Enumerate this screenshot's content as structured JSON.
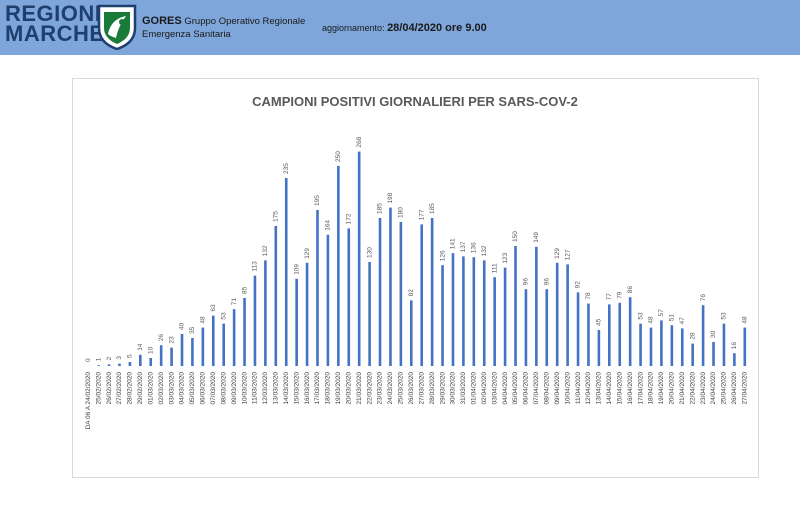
{
  "header": {
    "logo_line1": "REGIONE",
    "logo_line2": "MARCHE",
    "org_name": "GORES",
    "org_desc_line1": "Gruppo Operativo Regionale",
    "org_desc_line2": "Emergenza Sanitaria",
    "update_label": "aggiornamento:",
    "update_value": "28/04/2020 ore 9.00"
  },
  "colors": {
    "header_bg": "#7ea6da",
    "bar": "#4472c4",
    "logo": "#1f3f6f"
  },
  "chart_data": {
    "type": "bar",
    "title": "CAMPIONI POSITIVI GIORNALIERI PER SARS-COV-2",
    "xlabel": "",
    "ylabel": "",
    "ylim": [
      0,
      280
    ],
    "grid": false,
    "categories": [
      "DA 06 A 24/02/2020",
      "25/02/2020",
      "26/02/2020",
      "27/02/2020",
      "28/02/2020",
      "29/02/2020",
      "01/03/2020",
      "02/03/2020",
      "03/03/2020",
      "04/03/2020",
      "05/03/2020",
      "06/03/2020",
      "07/03/2020",
      "08/03/2020",
      "09/03/2020",
      "10/03/2020",
      "11/03/2020",
      "12/03/2020",
      "13/03/2020",
      "14/03/2020",
      "15/03/2020",
      "16/03/2020",
      "17/03/2020",
      "18/03/2020",
      "19/03/2020",
      "20/03/2020",
      "21/03/2020",
      "22/03/2020",
      "23/03/2020",
      "24/03/2020",
      "25/03/2020",
      "26/03/2020",
      "27/03/2020",
      "28/03/2020",
      "29/03/2020",
      "30/03/2020",
      "31/03/2020",
      "01/04/2020",
      "02/04/2020",
      "03/04/2020",
      "04/04/2020",
      "05/04/2020",
      "06/04/2020",
      "07/04/2020",
      "08/04/2020",
      "09/04/2020",
      "10/04/2020",
      "11/04/2020",
      "12/04/2020",
      "13/04/2020",
      "14/04/2020",
      "15/04/2020",
      "16/04/2020",
      "17/04/2020",
      "18/04/2020",
      "19/04/2020",
      "20/04/2020",
      "21/04/2020",
      "22/04/2020",
      "23/04/2020",
      "24/04/2020",
      "25/04/2020",
      "26/04/2020",
      "27/04/2020"
    ],
    "values": [
      0,
      1,
      2,
      3,
      5,
      14,
      10,
      26,
      23,
      40,
      35,
      48,
      63,
      53,
      71,
      85,
      113,
      132,
      175,
      235,
      109,
      129,
      195,
      164,
      250,
      172,
      268,
      130,
      185,
      198,
      180,
      82,
      177,
      185,
      126,
      141,
      137,
      136,
      132,
      111,
      123,
      150,
      96,
      149,
      96,
      129,
      127,
      92,
      78,
      45,
      77,
      79,
      86,
      53,
      48,
      57,
      51,
      47,
      28,
      76,
      30,
      53,
      16,
      48
    ]
  }
}
